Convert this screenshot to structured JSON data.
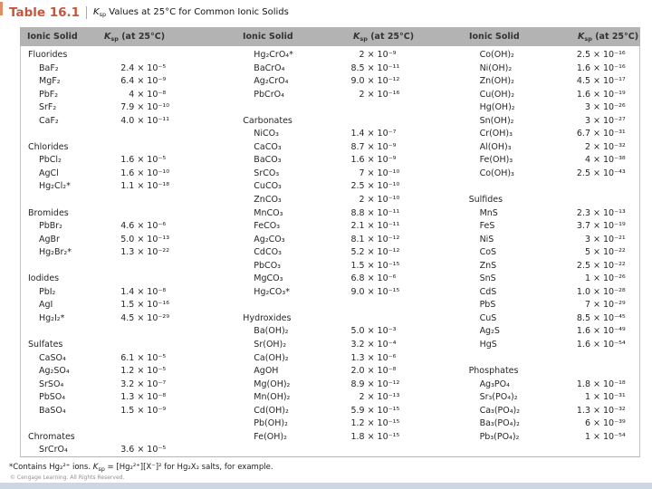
{
  "title": {
    "label": "Table 16.1",
    "k": "K",
    "k_sub": "sp",
    "rest": " Values at 25°C for Common Ionic Solids"
  },
  "header": {
    "solid": "Ionic Solid",
    "ksp_k": "K",
    "ksp_sub": "sp",
    "ksp_rest": " (at 25°C)"
  },
  "columns": [
    {
      "sections": [
        {
          "name": "Fluorides",
          "items": [
            [
              "BaF₂",
              "2.4 × 10⁻⁵"
            ],
            [
              "MgF₂",
              "6.4 × 10⁻⁹"
            ],
            [
              "PbF₂",
              "4 × 10⁻⁸"
            ],
            [
              "SrF₂",
              "7.9 × 10⁻¹⁰"
            ],
            [
              "CaF₂",
              "4.0 × 10⁻¹¹"
            ]
          ]
        },
        {
          "name": "Chlorides",
          "items": [
            [
              "PbCl₂",
              "1.6 × 10⁻⁵"
            ],
            [
              "AgCl",
              "1.6 × 10⁻¹⁰"
            ],
            [
              "Hg₂Cl₂*",
              "1.1 × 10⁻¹⁸"
            ]
          ]
        },
        {
          "name": "Bromides",
          "items": [
            [
              "PbBr₂",
              "4.6 × 10⁻⁶"
            ],
            [
              "AgBr",
              "5.0 × 10⁻¹³"
            ],
            [
              "Hg₂Br₂*",
              "1.3 × 10⁻²²"
            ]
          ]
        },
        {
          "name": "Iodides",
          "items": [
            [
              "PbI₂",
              "1.4 × 10⁻⁸"
            ],
            [
              "AgI",
              "1.5 × 10⁻¹⁶"
            ],
            [
              "Hg₂I₂*",
              "4.5 × 10⁻²⁹"
            ]
          ]
        },
        {
          "name": "Sulfates",
          "items": [
            [
              "CaSO₄",
              "6.1 × 10⁻⁵"
            ],
            [
              "Ag₂SO₄",
              "1.2 × 10⁻⁵"
            ],
            [
              "SrSO₄",
              "3.2 × 10⁻⁷"
            ],
            [
              "PbSO₄",
              "1.3 × 10⁻⁸"
            ],
            [
              "BaSO₄",
              "1.5 × 10⁻⁹"
            ]
          ]
        },
        {
          "name": "Chromates",
          "items": [
            [
              "SrCrO₄",
              "3.6 × 10⁻⁵"
            ]
          ]
        }
      ]
    },
    {
      "sections": [
        {
          "name": "",
          "items": [
            [
              "Hg₂CrO₄*",
              "2 × 10⁻⁹"
            ],
            [
              "BaCrO₄",
              "8.5 × 10⁻¹¹"
            ],
            [
              "Ag₂CrO₄",
              "9.0 × 10⁻¹²"
            ],
            [
              "PbCrO₄",
              "2 × 10⁻¹⁶"
            ]
          ]
        },
        {
          "name": "Carbonates",
          "items": [
            [
              "NiCO₃",
              "1.4 × 10⁻⁷"
            ],
            [
              "CaCO₃",
              "8.7 × 10⁻⁹"
            ],
            [
              "BaCO₃",
              "1.6 × 10⁻⁹"
            ],
            [
              "SrCO₃",
              "7 × 10⁻¹⁰"
            ],
            [
              "CuCO₃",
              "2.5 × 10⁻¹⁰"
            ],
            [
              "ZnCO₃",
              "2 × 10⁻¹⁰"
            ],
            [
              "MnCO₃",
              "8.8 × 10⁻¹¹"
            ],
            [
              "FeCO₃",
              "2.1 × 10⁻¹¹"
            ],
            [
              "Ag₂CO₃",
              "8.1 × 10⁻¹²"
            ],
            [
              "CdCO₃",
              "5.2 × 10⁻¹²"
            ],
            [
              "PbCO₃",
              "1.5 × 10⁻¹⁵"
            ],
            [
              "MgCO₃",
              "6.8 × 10⁻⁶"
            ],
            [
              "Hg₂CO₃*",
              "9.0 × 10⁻¹⁵"
            ]
          ]
        },
        {
          "name": "Hydroxides",
          "items": [
            [
              "Ba(OH)₂",
              "5.0 × 10⁻³"
            ],
            [
              "Sr(OH)₂",
              "3.2 × 10⁻⁴"
            ],
            [
              "Ca(OH)₂",
              "1.3 × 10⁻⁶"
            ],
            [
              "AgOH",
              "2.0 × 10⁻⁸"
            ],
            [
              "Mg(OH)₂",
              "8.9 × 10⁻¹²"
            ],
            [
              "Mn(OH)₂",
              "2 × 10⁻¹³"
            ],
            [
              "Cd(OH)₂",
              "5.9 × 10⁻¹⁵"
            ],
            [
              "Pb(OH)₂",
              "1.2 × 10⁻¹⁵"
            ],
            [
              "Fe(OH)₂",
              "1.8 × 10⁻¹⁵"
            ]
          ]
        }
      ]
    },
    {
      "sections": [
        {
          "name": "",
          "items": [
            [
              "Co(OH)₂",
              "2.5 × 10⁻¹⁶"
            ],
            [
              "Ni(OH)₂",
              "1.6 × 10⁻¹⁶"
            ],
            [
              "Zn(OH)₂",
              "4.5 × 10⁻¹⁷"
            ],
            [
              "Cu(OH)₂",
              "1.6 × 10⁻¹⁹"
            ],
            [
              "Hg(OH)₂",
              "3 × 10⁻²⁶"
            ],
            [
              "Sn(OH)₂",
              "3 × 10⁻²⁷"
            ],
            [
              "Cr(OH)₃",
              "6.7 × 10⁻³¹"
            ],
            [
              "Al(OH)₃",
              "2 × 10⁻³²"
            ],
            [
              "Fe(OH)₃",
              "4 × 10⁻³⁸"
            ],
            [
              "Co(OH)₃",
              "2.5 × 10⁻⁴³"
            ]
          ]
        },
        {
          "name": "Sulfides",
          "items": [
            [
              "MnS",
              "2.3 × 10⁻¹³"
            ],
            [
              "FeS",
              "3.7 × 10⁻¹⁹"
            ],
            [
              "NiS",
              "3 × 10⁻²¹"
            ],
            [
              "CoS",
              "5 × 10⁻²²"
            ],
            [
              "ZnS",
              "2.5 × 10⁻²²"
            ],
            [
              "SnS",
              "1 × 10⁻²⁶"
            ],
            [
              "CdS",
              "1.0 × 10⁻²⁸"
            ],
            [
              "PbS",
              "7 × 10⁻²⁹"
            ],
            [
              "CuS",
              "8.5 × 10⁻⁴⁵"
            ],
            [
              "Ag₂S",
              "1.6 × 10⁻⁴⁹"
            ],
            [
              "HgS",
              "1.6 × 10⁻⁵⁴"
            ]
          ]
        },
        {
          "name": "Phosphates",
          "items": [
            [
              "Ag₃PO₄",
              "1.8 × 10⁻¹⁸"
            ],
            [
              "Sr₃(PO₄)₂",
              "1 × 10⁻³¹"
            ],
            [
              "Ca₃(PO₄)₂",
              "1.3 × 10⁻³²"
            ],
            [
              "Ba₃(PO₄)₂",
              "6 × 10⁻³⁹"
            ],
            [
              "Pb₃(PO₄)₂",
              "1 × 10⁻⁵⁴"
            ]
          ]
        }
      ]
    }
  ],
  "footnote": {
    "pre": "*Contains Hg₂²⁺ ions. ",
    "k": "K",
    "k_sub": "sp",
    "post": " = [Hg₂²⁺][X⁻]² for Hg₂X₂ salts, for example."
  },
  "copyright": "© Cengage Learning. All Rights Reserved.",
  "colors": {
    "title_accent": "#c4573b",
    "header_bg": "#b3b3b3",
    "footer_strip": "#cdd6e3"
  }
}
